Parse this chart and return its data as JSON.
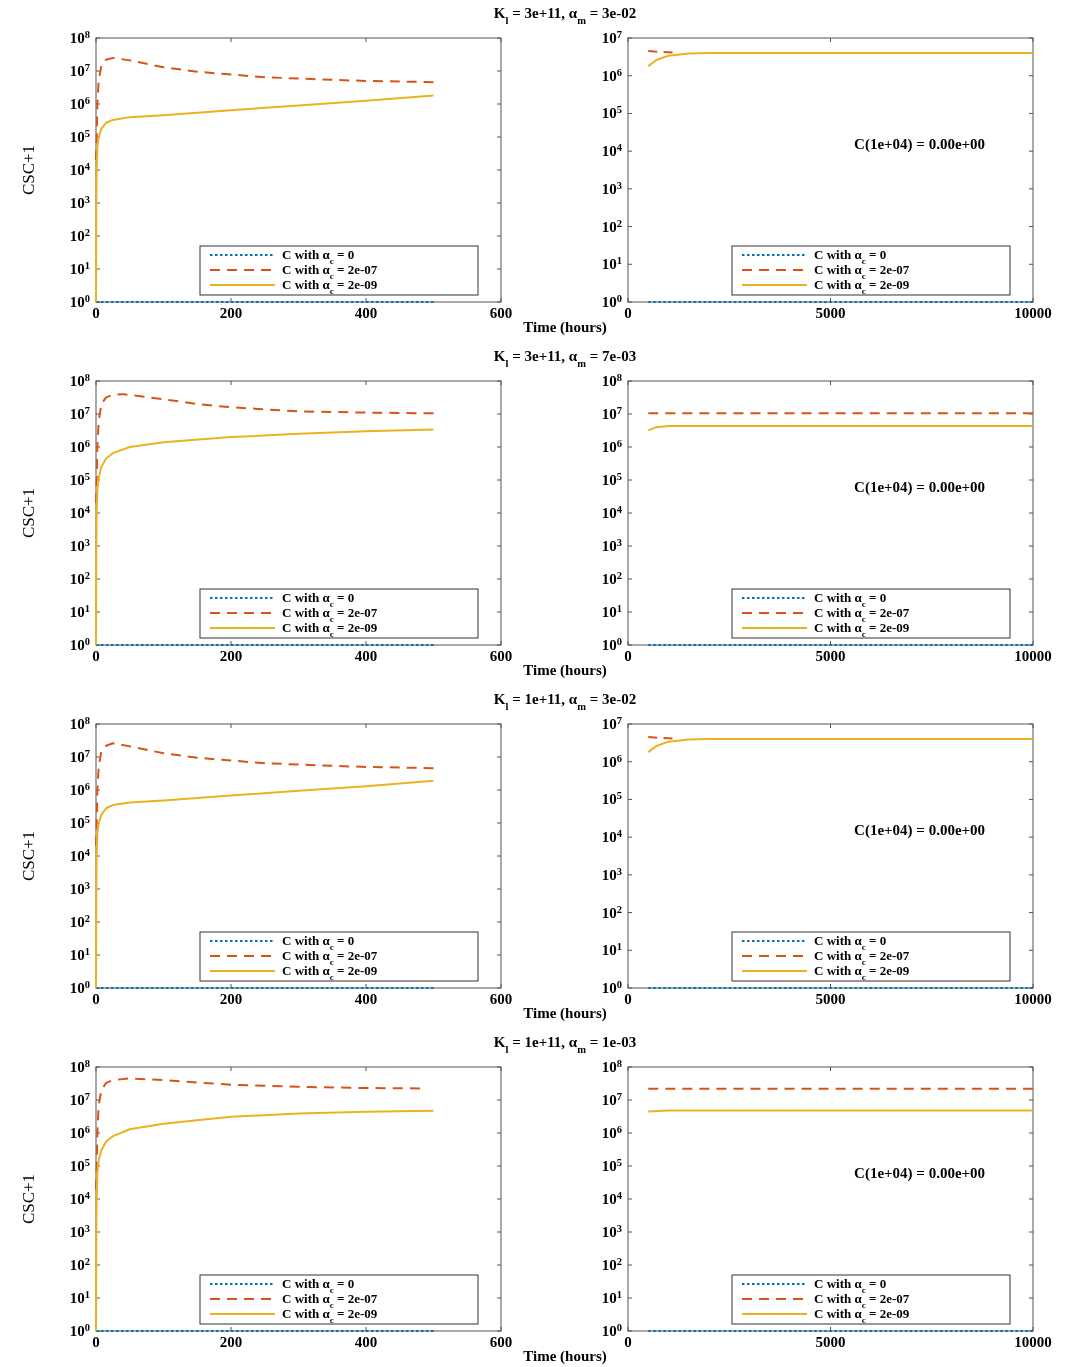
{
  "chart_data": [
    {
      "type": "line",
      "title": "K$_{l}$ = 3e+11, α$_{m}$ = 3e-02",
      "xlabel": "Time (hours)",
      "ylabel": "CSC+1",
      "log": "y",
      "legend": "bottom right",
      "xlim": [
        0,
        600
      ],
      "xticks": [
        0,
        200,
        400,
        600
      ],
      "ylim": [
        1,
        100000000
      ],
      "yticks": [
        {
          "value": 1,
          "label": "10$^{0}$"
        },
        {
          "value": 10,
          "label": "10$^{1}$"
        },
        {
          "value": 100,
          "label": "10$^{2}$"
        },
        {
          "value": 1000,
          "label": "10$^{3}$"
        },
        {
          "value": 10000,
          "label": "10$^{4}$"
        },
        {
          "value": 100000,
          "label": "10$^{5}$"
        },
        {
          "value": 1000000,
          "label": "10$^{6}$"
        },
        {
          "value": 10000000,
          "label": "10$^{7}$"
        },
        {
          "value": 100000000,
          "label": "10$^{8}$"
        }
      ],
      "series": [
        {
          "name": "C with α$_{c}$ = 0",
          "color": "#0072bd",
          "line_style": "dotted",
          "x": [
            0,
            500
          ],
          "values": [
            1,
            1
          ]
        },
        {
          "name": "C with α$_{c}$ = 2e-07",
          "color": "#d95319",
          "line_style": "dashed",
          "x": [
            0,
            1,
            2,
            4,
            8,
            15,
            25,
            50,
            100,
            150,
            200,
            250,
            300,
            350,
            400,
            450,
            500
          ],
          "values": [
            20000,
            100000,
            1000000,
            5000000,
            15000000,
            22000000,
            25000000,
            21000000,
            13000000,
            9500000,
            7800000,
            6500000,
            5900000,
            5400000,
            5000000,
            4800000,
            4600000
          ]
        },
        {
          "name": "C with α$_{c}$ = 2e-09",
          "color": "#edb120",
          "line_style": "solid",
          "x": [
            0,
            0.5,
            1,
            2,
            4,
            8,
            15,
            25,
            50,
            100,
            200,
            300,
            400,
            500
          ],
          "values": [
            1,
            1000,
            10000,
            50000,
            100000,
            180000,
            270000,
            330000,
            400000,
            460000,
            650000,
            900000,
            1250000,
            1800000
          ]
        }
      ]
    },
    {
      "type": "line",
      "log": "y",
      "legend": "bottom right",
      "xlim": [
        0,
        10000
      ],
      "xticks": [
        0,
        5000,
        10000
      ],
      "ylim": [
        1,
        10000000
      ],
      "yticks": [
        {
          "value": 1,
          "label": "10$^{0}$"
        },
        {
          "value": 10,
          "label": "10$^{1}$"
        },
        {
          "value": 100,
          "label": "10$^{2}$"
        },
        {
          "value": 1000,
          "label": "10$^{3}$"
        },
        {
          "value": 10000,
          "label": "10$^{4}$"
        },
        {
          "value": 100000,
          "label": "10$^{5}$"
        },
        {
          "value": 1000000,
          "label": "10$^{6}$"
        },
        {
          "value": 10000000,
          "label": "10$^{7}$"
        }
      ],
      "annotations": [
        "C(1e+04) = 0.00e+00"
      ],
      "series": [
        {
          "name": "C with α$_{c}$ = 0",
          "color": "#0072bd",
          "line_style": "dotted",
          "x": [
            500,
            10000
          ],
          "values": [
            1,
            1
          ]
        },
        {
          "name": "C with α$_{c}$ = 2e-07",
          "color": "#d95319",
          "line_style": "dashed",
          "x": [
            500,
            800,
            1100
          ],
          "values": [
            4500000,
            4300000,
            4100000
          ]
        },
        {
          "name": "C with α$_{c}$ = 2e-09",
          "color": "#edb120",
          "line_style": "solid",
          "x": [
            500,
            700,
            1000,
            1500,
            2000,
            10000
          ],
          "values": [
            1800000,
            2600000,
            3400000,
            3900000,
            4000000,
            4000000
          ]
        }
      ]
    },
    {
      "type": "line",
      "title": "K$_{l}$ = 3e+11, α$_{m}$ = 7e-03",
      "xlabel": "Time (hours)",
      "ylabel": "CSC+1",
      "log": "y",
      "legend": "bottom right",
      "xlim": [
        0,
        600
      ],
      "xticks": [
        0,
        200,
        400,
        600
      ],
      "ylim": [
        1,
        100000000
      ],
      "yticks": [
        {
          "value": 1,
          "label": "10$^{0}$"
        },
        {
          "value": 10,
          "label": "10$^{1}$"
        },
        {
          "value": 100,
          "label": "10$^{2}$"
        },
        {
          "value": 1000,
          "label": "10$^{3}$"
        },
        {
          "value": 10000,
          "label": "10$^{4}$"
        },
        {
          "value": 100000,
          "label": "10$^{5}$"
        },
        {
          "value": 1000000,
          "label": "10$^{6}$"
        },
        {
          "value": 10000000,
          "label": "10$^{7}$"
        },
        {
          "value": 100000000,
          "label": "10$^{8}$"
        }
      ],
      "series": [
        {
          "name": "C with α$_{c}$ = 0",
          "color": "#0072bd",
          "line_style": "dotted",
          "x": [
            0,
            500
          ],
          "values": [
            1,
            1
          ]
        },
        {
          "name": "C with α$_{c}$ = 2e-07",
          "color": "#d95319",
          "line_style": "dashed",
          "x": [
            0,
            1,
            2,
            4,
            8,
            15,
            25,
            40,
            100,
            150,
            200,
            300,
            400,
            500
          ],
          "values": [
            20000,
            100000,
            1000000,
            6000000,
            20000000,
            32000000,
            38000000,
            40000000,
            28000000,
            20000000,
            16000000,
            12000000,
            11000000,
            10500000
          ]
        },
        {
          "name": "C with α$_{c}$ = 2e-09",
          "color": "#edb120",
          "line_style": "solid",
          "x": [
            0,
            0.5,
            1,
            2,
            4,
            8,
            15,
            25,
            50,
            100,
            200,
            300,
            400,
            500
          ],
          "values": [
            1,
            1000,
            10000,
            50000,
            120000,
            250000,
            450000,
            650000,
            1000000,
            1400000,
            2000000,
            2500000,
            3000000,
            3400000
          ]
        }
      ]
    },
    {
      "type": "line",
      "log": "y",
      "legend": "bottom right",
      "xlim": [
        0,
        10000
      ],
      "xticks": [
        0,
        5000,
        10000
      ],
      "ylim": [
        1,
        100000000
      ],
      "yticks": [
        {
          "value": 1,
          "label": "10$^{0}$"
        },
        {
          "value": 10,
          "label": "10$^{1}$"
        },
        {
          "value": 100,
          "label": "10$^{2}$"
        },
        {
          "value": 1000,
          "label": "10$^{3}$"
        },
        {
          "value": 10000,
          "label": "10$^{4}$"
        },
        {
          "value": 100000,
          "label": "10$^{5}$"
        },
        {
          "value": 1000000,
          "label": "10$^{6}$"
        },
        {
          "value": 10000000,
          "label": "10$^{7}$"
        },
        {
          "value": 100000000,
          "label": "10$^{8}$"
        }
      ],
      "annotations": [
        "C(1e+04) = 0.00e+00"
      ],
      "series": [
        {
          "name": "C with α$_{c}$ = 0",
          "color": "#0072bd",
          "line_style": "dotted",
          "x": [
            500,
            10000
          ],
          "values": [
            1,
            1
          ]
        },
        {
          "name": "C with α$_{c}$ = 2e-07",
          "color": "#d95319",
          "line_style": "dashed",
          "x": [
            500,
            10000
          ],
          "values": [
            10500000,
            10500000
          ]
        },
        {
          "name": "C with α$_{c}$ = 2e-09",
          "color": "#edb120",
          "line_style": "solid",
          "x": [
            500,
            700,
            1000,
            10000
          ],
          "values": [
            3200000,
            4000000,
            4300000,
            4300000
          ]
        }
      ]
    },
    {
      "type": "line",
      "title": "K$_{l}$ = 1e+11, α$_{m}$ = 3e-02",
      "xlabel": "Time (hours)",
      "ylabel": "CSC+1",
      "log": "y",
      "legend": "bottom right",
      "xlim": [
        0,
        600
      ],
      "xticks": [
        0,
        200,
        400,
        600
      ],
      "ylim": [
        1,
        100000000
      ],
      "yticks": [
        {
          "value": 1,
          "label": "10$^{0}$"
        },
        {
          "value": 10,
          "label": "10$^{1}$"
        },
        {
          "value": 100,
          "label": "10$^{2}$"
        },
        {
          "value": 1000,
          "label": "10$^{3}$"
        },
        {
          "value": 10000,
          "label": "10$^{4}$"
        },
        {
          "value": 100000,
          "label": "10$^{5}$"
        },
        {
          "value": 1000000,
          "label": "10$^{6}$"
        },
        {
          "value": 10000000,
          "label": "10$^{7}$"
        },
        {
          "value": 100000000,
          "label": "10$^{8}$"
        }
      ],
      "series": [
        {
          "name": "C with α$_{c}$ = 0",
          "color": "#0072bd",
          "line_style": "dotted",
          "x": [
            0,
            500
          ],
          "values": [
            1,
            1
          ]
        },
        {
          "name": "C with α$_{c}$ = 2e-07",
          "color": "#d95319",
          "line_style": "dashed",
          "x": [
            0,
            1,
            2,
            4,
            8,
            15,
            25,
            50,
            100,
            150,
            200,
            250,
            300,
            350,
            400,
            450,
            500
          ],
          "values": [
            20000,
            100000,
            1000000,
            5000000,
            15000000,
            22000000,
            26000000,
            21000000,
            13000000,
            9500000,
            7800000,
            6500000,
            5900000,
            5400000,
            5000000,
            4800000,
            4600000
          ]
        },
        {
          "name": "C with α$_{c}$ = 2e-09",
          "color": "#edb120",
          "line_style": "solid",
          "x": [
            0,
            0.5,
            1,
            2,
            4,
            8,
            15,
            25,
            50,
            100,
            200,
            300,
            400,
            500
          ],
          "values": [
            1,
            1000,
            10000,
            50000,
            100000,
            180000,
            280000,
            350000,
            420000,
            480000,
            680000,
            950000,
            1300000,
            1900000
          ]
        }
      ]
    },
    {
      "type": "line",
      "log": "y",
      "legend": "bottom right",
      "xlim": [
        0,
        10000
      ],
      "xticks": [
        0,
        5000,
        10000
      ],
      "ylim": [
        1,
        10000000
      ],
      "yticks": [
        {
          "value": 1,
          "label": "10$^{0}$"
        },
        {
          "value": 10,
          "label": "10$^{1}$"
        },
        {
          "value": 100,
          "label": "10$^{2}$"
        },
        {
          "value": 1000,
          "label": "10$^{3}$"
        },
        {
          "value": 10000,
          "label": "10$^{4}$"
        },
        {
          "value": 100000,
          "label": "10$^{5}$"
        },
        {
          "value": 1000000,
          "label": "10$^{6}$"
        },
        {
          "value": 10000000,
          "label": "10$^{7}$"
        }
      ],
      "annotations": [
        "C(1e+04) = 0.00e+00"
      ],
      "series": [
        {
          "name": "C with α$_{c}$ = 0",
          "color": "#0072bd",
          "line_style": "dotted",
          "x": [
            500,
            10000
          ],
          "values": [
            1,
            1
          ]
        },
        {
          "name": "C with α$_{c}$ = 2e-07",
          "color": "#d95319",
          "line_style": "dashed",
          "x": [
            500,
            800,
            1100
          ],
          "values": [
            4500000,
            4300000,
            4100000
          ]
        },
        {
          "name": "C with α$_{c}$ = 2e-09",
          "color": "#edb120",
          "line_style": "solid",
          "x": [
            500,
            700,
            1000,
            1500,
            2000,
            10000
          ],
          "values": [
            1800000,
            2600000,
            3400000,
            3900000,
            4000000,
            4000000
          ]
        }
      ]
    },
    {
      "type": "line",
      "title": "K$_{l}$ = 1e+11, α$_{m}$ = 1e-03",
      "xlabel": "Time (hours)",
      "ylabel": "CSC+1",
      "log": "y",
      "legend": "bottom right",
      "xlim": [
        0,
        600
      ],
      "xticks": [
        0,
        200,
        400,
        600
      ],
      "ylim": [
        1,
        100000000
      ],
      "yticks": [
        {
          "value": 1,
          "label": "10$^{0}$"
        },
        {
          "value": 10,
          "label": "10$^{1}$"
        },
        {
          "value": 100,
          "label": "10$^{2}$"
        },
        {
          "value": 1000,
          "label": "10$^{3}$"
        },
        {
          "value": 10000,
          "label": "10$^{4}$"
        },
        {
          "value": 100000,
          "label": "10$^{5}$"
        },
        {
          "value": 1000000,
          "label": "10$^{6}$"
        },
        {
          "value": 10000000,
          "label": "10$^{7}$"
        },
        {
          "value": 100000000,
          "label": "10$^{8}$"
        }
      ],
      "series": [
        {
          "name": "C with α$_{c}$ = 0",
          "color": "#0072bd",
          "line_style": "dotted",
          "x": [
            0,
            500
          ],
          "values": [
            1,
            1
          ]
        },
        {
          "name": "C with α$_{c}$ = 2e-07",
          "color": "#d95319",
          "line_style": "dashed",
          "x": [
            0,
            1,
            2,
            4,
            8,
            15,
            25,
            50,
            100,
            200,
            300,
            400,
            480
          ],
          "values": [
            20000,
            100000,
            1000000,
            7000000,
            20000000,
            33000000,
            40000000,
            45000000,
            40000000,
            29000000,
            25000000,
            23000000,
            22500000
          ]
        },
        {
          "name": "C with α$_{c}$ = 2e-09",
          "color": "#edb120",
          "line_style": "solid",
          "x": [
            0,
            0.5,
            1,
            2,
            4,
            8,
            15,
            25,
            50,
            100,
            200,
            300,
            400,
            500
          ],
          "values": [
            1,
            1000,
            10000,
            60000,
            150000,
            300000,
            550000,
            800000,
            1300000,
            1900000,
            3100000,
            3900000,
            4400000,
            4700000
          ]
        }
      ]
    },
    {
      "type": "line",
      "log": "y",
      "legend": "bottom right",
      "xlim": [
        0,
        10000
      ],
      "xticks": [
        0,
        5000,
        10000
      ],
      "ylim": [
        1,
        100000000
      ],
      "yticks": [
        {
          "value": 1,
          "label": "10$^{0}$"
        },
        {
          "value": 10,
          "label": "10$^{1}$"
        },
        {
          "value": 100,
          "label": "10$^{2}$"
        },
        {
          "value": 1000,
          "label": "10$^{3}$"
        },
        {
          "value": 10000,
          "label": "10$^{4}$"
        },
        {
          "value": 100000,
          "label": "10$^{5}$"
        },
        {
          "value": 1000000,
          "label": "10$^{6}$"
        },
        {
          "value": 10000000,
          "label": "10$^{7}$"
        },
        {
          "value": 100000000,
          "label": "10$^{8}$"
        }
      ],
      "annotations": [
        "C(1e+04) = 0.00e+00"
      ],
      "series": [
        {
          "name": "C with α$_{c}$ = 0",
          "color": "#0072bd",
          "line_style": "dotted",
          "x": [
            500,
            10000
          ],
          "values": [
            1,
            1
          ]
        },
        {
          "name": "C with α$_{c}$ = 2e-07",
          "color": "#d95319",
          "line_style": "dashed",
          "x": [
            500,
            10000
          ],
          "values": [
            22000000,
            22000000
          ]
        },
        {
          "name": "C with α$_{c}$ = 2e-09",
          "color": "#edb120",
          "line_style": "solid",
          "x": [
            500,
            1000,
            10000
          ],
          "values": [
            4500000,
            4800000,
            4800000
          ]
        }
      ]
    }
  ]
}
